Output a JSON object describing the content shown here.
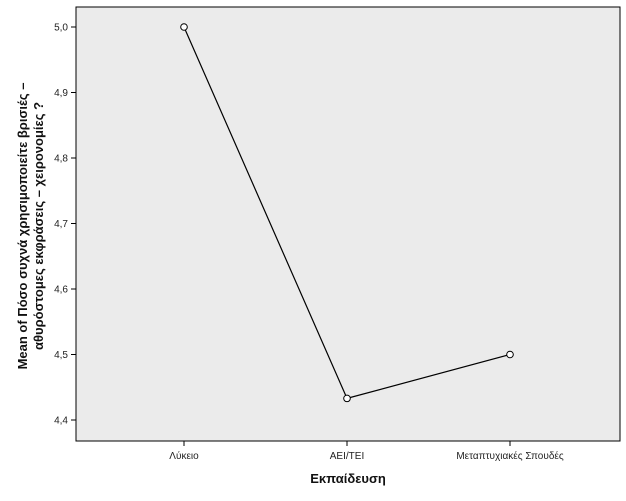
{
  "colors": {
    "plot_background": "#ebebeb",
    "line": "#000000",
    "marker_stroke": "#000000",
    "marker_fill": "#ffffff",
    "frame": "#000000"
  },
  "chart_data": {
    "type": "line",
    "title": "",
    "xlabel": "Εκπαίδευση",
    "ylabel_lines": [
      "Mean of Πόσο συχνά χρησιμοποιείτε βρισιές –",
      "αθυρόστομες εκφράσεις – χειρονομίες ?"
    ],
    "categories": [
      "Λύκειο",
      "ΑΕΙ/ΤΕΙ",
      "Μεταπτυχιακές Σπουδές"
    ],
    "series": [
      {
        "values": [
          5.0,
          4.433,
          4.5
        ],
        "marker": "open-circle"
      }
    ],
    "ylim": [
      4.4,
      5.0
    ],
    "yticks": [
      "4,4",
      "4,5",
      "4,6",
      "4,7",
      "4,8",
      "4,9",
      "5,0"
    ],
    "grid": false,
    "legend": "none"
  }
}
